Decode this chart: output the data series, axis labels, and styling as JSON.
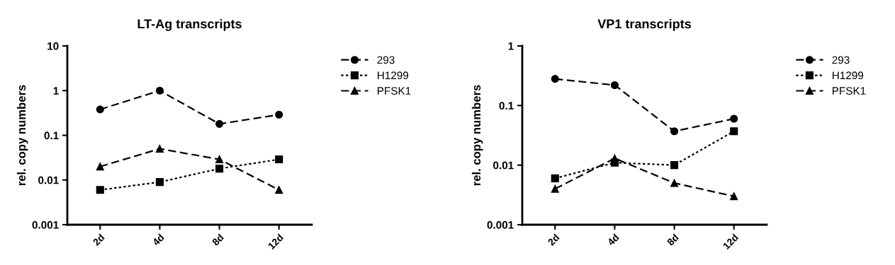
{
  "chart_data": [
    {
      "type": "line",
      "title": "LT-Ag transcripts",
      "ylabel": "rel. copy numbers",
      "categories": [
        "2d",
        "4d",
        "8d",
        "12d"
      ],
      "log": "y",
      "ylim": [
        0.001,
        10
      ],
      "yticks": [
        0.001,
        0.01,
        0.1,
        1,
        10
      ],
      "legend": "right",
      "grid": false,
      "series": [
        {
          "name": "293",
          "color": "#000000",
          "marker": "circle",
          "line_style": "dashed",
          "values": [
            0.38,
            1.0,
            0.18,
            0.29
          ]
        },
        {
          "name": "H1299",
          "color": "#000000",
          "marker": "square",
          "line_style": "dotted",
          "values": [
            0.006,
            0.009,
            0.018,
            0.029
          ]
        },
        {
          "name": "PFSK1",
          "color": "#000000",
          "marker": "triangle",
          "line_style": "dashed",
          "values": [
            0.02,
            0.05,
            0.029,
            0.006
          ]
        }
      ]
    },
    {
      "type": "line",
      "title": "VP1 transcripts",
      "ylabel": "rel. copy numbers",
      "categories": [
        "2d",
        "4d",
        "8d",
        "12d"
      ],
      "log": "y",
      "ylim": [
        0.001,
        1
      ],
      "yticks": [
        0.001,
        0.01,
        0.1,
        1
      ],
      "legend": "right",
      "grid": false,
      "series": [
        {
          "name": "293",
          "color": "#000000",
          "marker": "circle",
          "line_style": "dashed",
          "values": [
            0.28,
            0.22,
            0.037,
            0.06
          ]
        },
        {
          "name": "H1299",
          "color": "#000000",
          "marker": "square",
          "line_style": "dotted",
          "values": [
            0.006,
            0.011,
            0.01,
            0.037
          ]
        },
        {
          "name": "PFSK1",
          "color": "#000000",
          "marker": "triangle",
          "line_style": "dashed",
          "values": [
            0.004,
            0.013,
            0.005,
            0.003
          ]
        }
      ]
    }
  ]
}
